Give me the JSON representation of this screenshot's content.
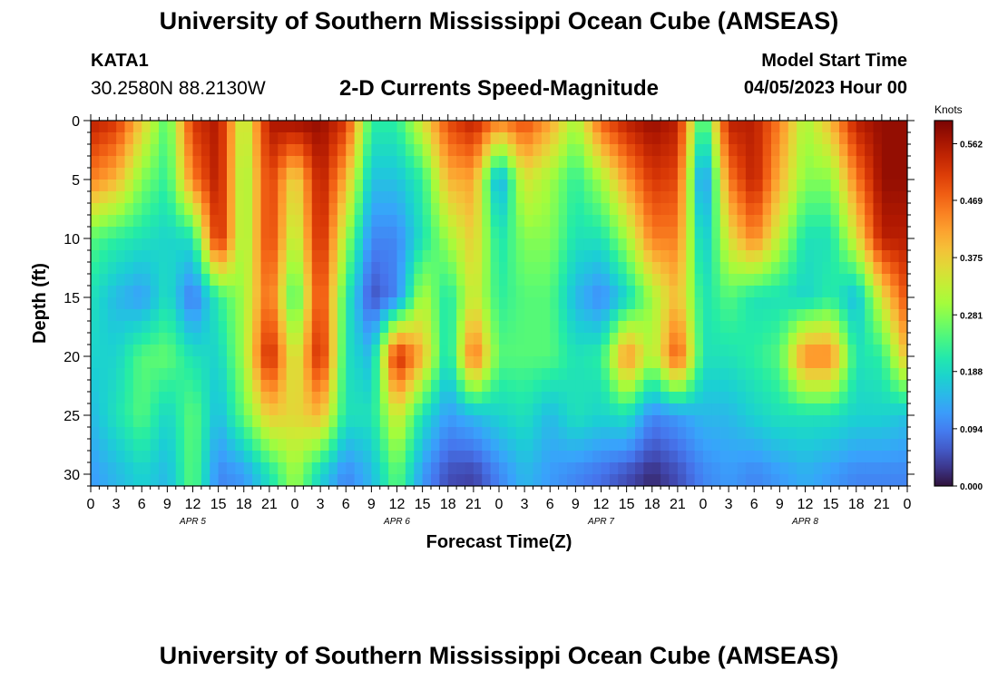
{
  "header": {
    "title": "University of Southern Mississippi Ocean Cube (AMSEAS)",
    "station_id": "KATA1",
    "station_coords": "30.2580N  88.2130W",
    "plot_title": "2-D Currents Speed-Magnitude",
    "model_start_label": "Model Start Time",
    "model_start_time": "04/05/2023 Hour 00"
  },
  "footer": {
    "title": "University of Southern Mississippi Ocean Cube (AMSEAS)"
  },
  "colors": {
    "background": "#ffffff",
    "text": "#000000"
  },
  "chart_data": {
    "type": "heatmap",
    "title": "2-D Currents Speed-Magnitude",
    "xlabel": "Forecast Time(Z)",
    "ylabel": "Depth (ft)",
    "x_hours_range": [
      0,
      96
    ],
    "x_tick_step_hours": 3,
    "x_tick_labels": [
      "0",
      "3",
      "6",
      "9",
      "12",
      "15",
      "18",
      "21",
      "0",
      "3",
      "6",
      "9",
      "12",
      "15",
      "18",
      "21",
      "0",
      "3",
      "6",
      "9",
      "12",
      "15",
      "18",
      "21",
      "0",
      "3",
      "6",
      "9",
      "12",
      "15",
      "18",
      "21",
      "0"
    ],
    "day_labels": [
      {
        "text": "APR 5",
        "hour": 12
      },
      {
        "text": "APR 6",
        "hour": 36
      },
      {
        "text": "APR 7",
        "hour": 60
      },
      {
        "text": "APR 8",
        "hour": 84
      }
    ],
    "ylim": [
      0,
      31
    ],
    "y_ticks": [
      0,
      5,
      10,
      15,
      20,
      25,
      30
    ],
    "y_tick_labels": [
      "0",
      "5",
      "10",
      "15",
      "20",
      "25",
      "30"
    ],
    "colorbar": {
      "title": "Knots",
      "range": [
        0,
        0.6
      ],
      "tick_values": [
        0.0,
        0.094,
        0.188,
        0.281,
        0.375,
        0.469,
        0.562
      ],
      "tick_labels": [
        "0.000",
        "0.094",
        "0.188",
        "0.281",
        "0.375",
        "0.469",
        "0.562"
      ]
    },
    "depths_ft": [
      0,
      5,
      10,
      15,
      20,
      25,
      30
    ],
    "hours": [
      0,
      3,
      6,
      9,
      12,
      15,
      18,
      21,
      24,
      27,
      30,
      33,
      36,
      39,
      42,
      45,
      48,
      51,
      54,
      57,
      60,
      63,
      66,
      69,
      72,
      75,
      78,
      81,
      84,
      87,
      90,
      93,
      96
    ],
    "speed_knots": [
      [
        0.55,
        0.52,
        0.38,
        0.24,
        0.52,
        0.56,
        0.3,
        0.56,
        0.58,
        0.58,
        0.52,
        0.22,
        0.22,
        0.35,
        0.5,
        0.55,
        0.45,
        0.5,
        0.42,
        0.3,
        0.48,
        0.55,
        0.58,
        0.55,
        0.2,
        0.55,
        0.55,
        0.45,
        0.3,
        0.4,
        0.55,
        0.58,
        0.58
      ],
      [
        0.45,
        0.4,
        0.28,
        0.22,
        0.45,
        0.56,
        0.28,
        0.52,
        0.35,
        0.56,
        0.4,
        0.16,
        0.16,
        0.22,
        0.4,
        0.42,
        0.12,
        0.35,
        0.3,
        0.22,
        0.3,
        0.42,
        0.52,
        0.5,
        0.08,
        0.45,
        0.55,
        0.4,
        0.28,
        0.28,
        0.45,
        0.58,
        0.58
      ],
      [
        0.25,
        0.22,
        0.2,
        0.18,
        0.2,
        0.55,
        0.28,
        0.52,
        0.3,
        0.55,
        0.3,
        0.1,
        0.1,
        0.2,
        0.3,
        0.38,
        0.2,
        0.28,
        0.28,
        0.2,
        0.2,
        0.3,
        0.45,
        0.45,
        0.15,
        0.35,
        0.45,
        0.32,
        0.2,
        0.2,
        0.35,
        0.55,
        0.55
      ],
      [
        0.2,
        0.15,
        0.12,
        0.2,
        0.08,
        0.22,
        0.3,
        0.48,
        0.22,
        0.52,
        0.22,
        0.05,
        0.1,
        0.32,
        0.2,
        0.35,
        0.22,
        0.25,
        0.25,
        0.15,
        0.1,
        0.18,
        0.3,
        0.4,
        0.2,
        0.25,
        0.2,
        0.2,
        0.18,
        0.22,
        0.15,
        0.35,
        0.5
      ],
      [
        0.18,
        0.18,
        0.25,
        0.26,
        0.2,
        0.18,
        0.3,
        0.55,
        0.32,
        0.55,
        0.2,
        0.15,
        0.55,
        0.4,
        0.18,
        0.48,
        0.25,
        0.25,
        0.25,
        0.2,
        0.22,
        0.45,
        0.3,
        0.5,
        0.2,
        0.2,
        0.22,
        0.25,
        0.45,
        0.45,
        0.2,
        0.22,
        0.4
      ],
      [
        0.15,
        0.2,
        0.25,
        0.18,
        0.26,
        0.15,
        0.26,
        0.38,
        0.36,
        0.4,
        0.2,
        0.2,
        0.35,
        0.2,
        0.12,
        0.15,
        0.18,
        0.2,
        0.15,
        0.2,
        0.18,
        0.2,
        0.1,
        0.12,
        0.15,
        0.15,
        0.18,
        0.2,
        0.2,
        0.2,
        0.18,
        0.18,
        0.16
      ],
      [
        0.12,
        0.15,
        0.18,
        0.15,
        0.26,
        0.1,
        0.12,
        0.2,
        0.3,
        0.18,
        0.1,
        0.15,
        0.26,
        0.12,
        0.05,
        0.04,
        0.1,
        0.15,
        0.12,
        0.1,
        0.08,
        0.05,
        0.02,
        0.05,
        0.1,
        0.12,
        0.1,
        0.12,
        0.14,
        0.12,
        0.1,
        0.1,
        0.1
      ]
    ]
  }
}
